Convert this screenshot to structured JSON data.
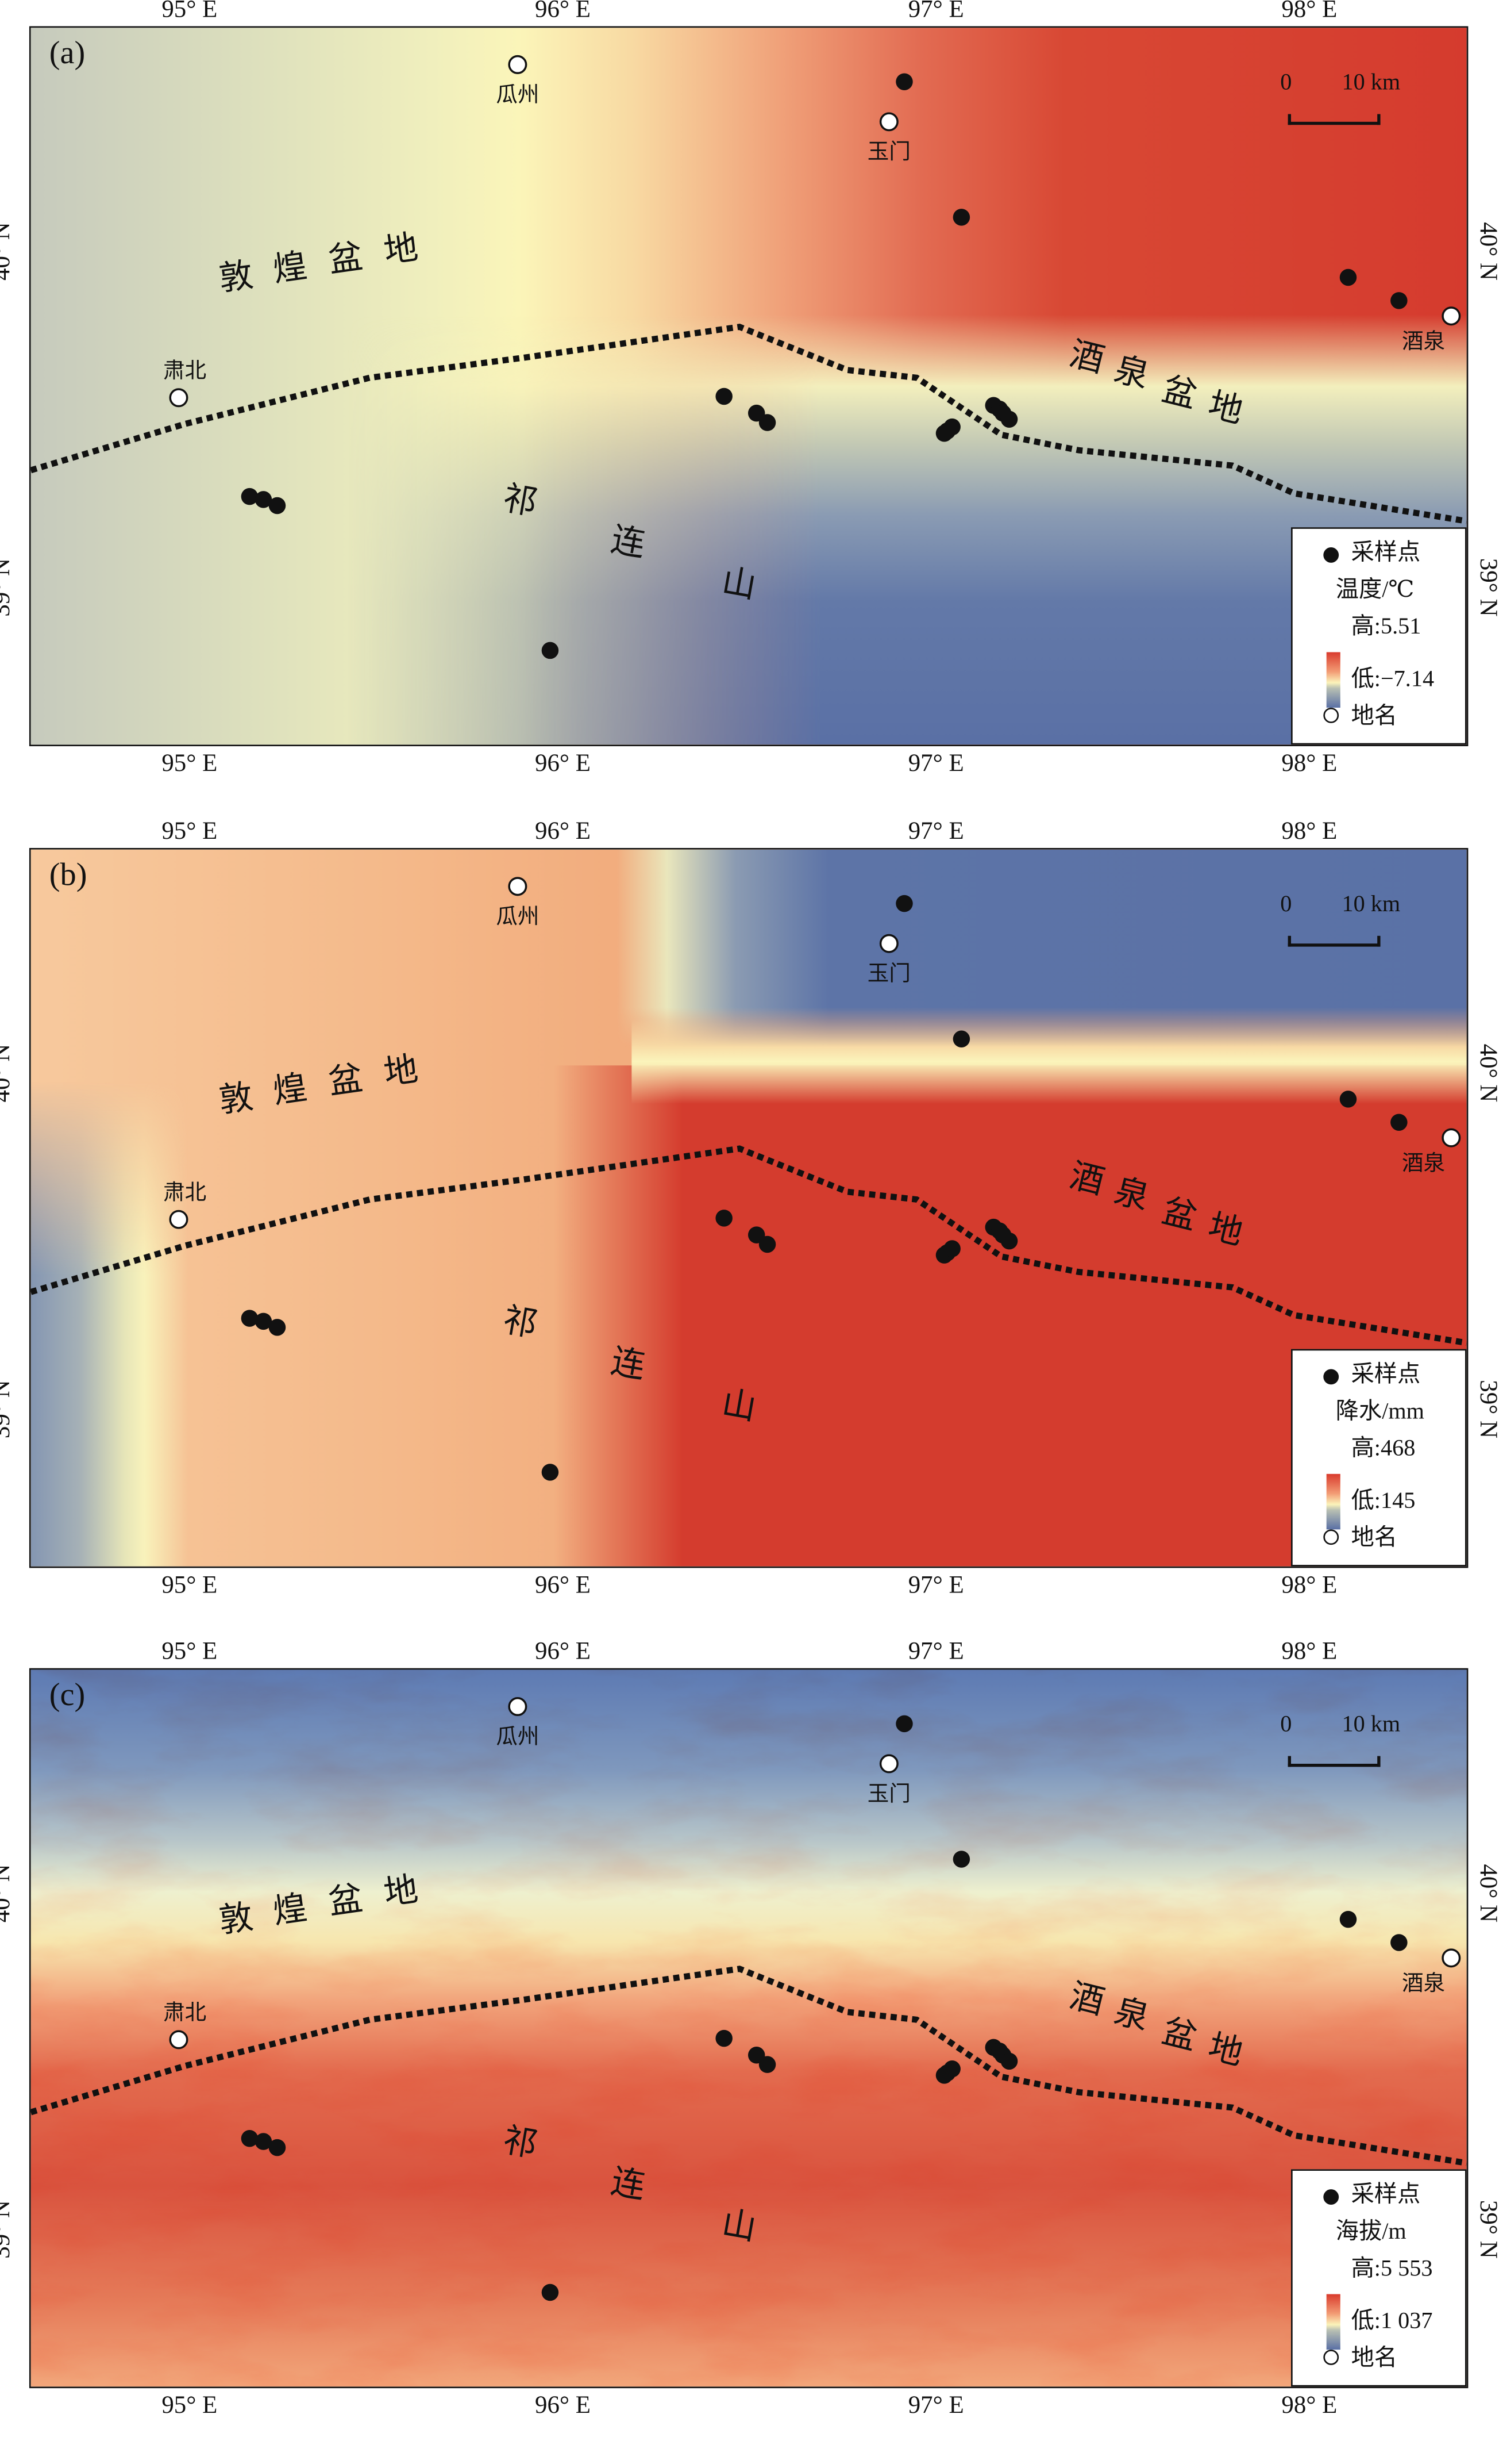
{
  "figure": {
    "lon_ticks": [
      {
        "lon": 95,
        "label": "95° E"
      },
      {
        "lon": 96,
        "label": "96° E"
      },
      {
        "lon": 97,
        "label": "97° E"
      },
      {
        "lon": 98,
        "label": "98° E"
      }
    ],
    "lat_ticks": [
      {
        "lat": 40,
        "label": "40° N"
      },
      {
        "lat": 39,
        "label": "39° N"
      }
    ],
    "scale_bar": {
      "zero": "0",
      "label": "10 km"
    },
    "region_labels": {
      "dunhuang_basin": [
        "敦",
        "煌",
        "盆",
        "地"
      ],
      "jiuquan_basin": [
        "酒",
        "泉",
        "盆",
        "地"
      ],
      "qilian_mountains": [
        "祁",
        "连",
        "山"
      ]
    },
    "sample_points": [
      [
        96.915,
        40.509
      ],
      [
        97.068,
        40.106
      ],
      [
        98.104,
        39.927
      ],
      [
        98.24,
        39.858
      ],
      [
        96.432,
        39.573
      ],
      [
        96.519,
        39.523
      ],
      [
        96.548,
        39.495
      ],
      [
        97.022,
        39.463
      ],
      [
        97.03,
        39.47
      ],
      [
        97.043,
        39.482
      ],
      [
        97.154,
        39.546
      ],
      [
        97.17,
        39.535
      ],
      [
        97.179,
        39.523
      ],
      [
        97.196,
        39.505
      ],
      [
        95.161,
        39.275
      ],
      [
        95.198,
        39.266
      ],
      [
        95.235,
        39.248
      ],
      [
        95.966,
        38.817
      ]
    ],
    "places": [
      {
        "name": "瓜州",
        "lon": 95.879,
        "lat": 40.56,
        "anchor": "below"
      },
      {
        "name": "玉门",
        "lon": 96.874,
        "lat": 40.39,
        "anchor": "below"
      },
      {
        "name": "酒泉",
        "lon": 98.38,
        "lat": 39.812,
        "anchor": "below-left"
      },
      {
        "name": "肃北",
        "lon": 94.971,
        "lat": 39.569,
        "anchor": "above"
      }
    ],
    "panels": [
      {
        "label": "(a)",
        "legend": {
          "sample": "采样点",
          "variable": "温度/℃",
          "high": "高:5.51",
          "low": "低:−7.14",
          "place": "地名"
        }
      },
      {
        "label": "(b)",
        "legend": {
          "sample": "采样点",
          "variable": "降水/mm",
          "high": "高:468",
          "low": "低:145",
          "place": "地名"
        }
      },
      {
        "label": "(c)",
        "legend": {
          "sample": "采样点",
          "variable": "海拔/m",
          "high": "高:5 553",
          "low": "低:1 037",
          "place": "地名"
        }
      }
    ]
  },
  "colors": {
    "high": "#d93b2d",
    "mid": "#fbf3ba",
    "low": "#5a70a5",
    "boundary": "#111111"
  }
}
